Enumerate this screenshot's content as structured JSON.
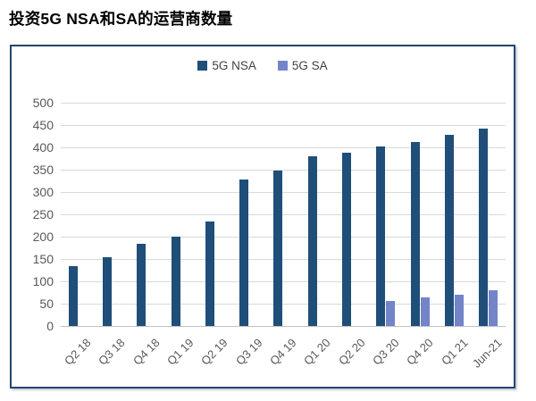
{
  "title": "投资5G NSA和SA的运营商数量",
  "chart_data": {
    "type": "bar",
    "title": "投资5G NSA和SA的运营商数量",
    "categories": [
      "Q2 18",
      "Q3 18",
      "Q4 18",
      "Q1 19",
      "Q2 19",
      "Q3 19",
      "Q4 19",
      "Q1 20",
      "Q2 20",
      "Q3 20",
      "Q4 20",
      "Q1 21",
      "Jun-21"
    ],
    "series": [
      {
        "name": "5G NSA",
        "color": "#1F4E79",
        "values": [
          135,
          154,
          184,
          201,
          235,
          328,
          349,
          381,
          388,
          402,
          412,
          428,
          443
        ]
      },
      {
        "name": "5G SA",
        "color": "#7384C9",
        "values": [
          null,
          null,
          null,
          null,
          null,
          null,
          null,
          null,
          null,
          56,
          65,
          70,
          81
        ]
      }
    ],
    "xlabel": "",
    "ylabel": "",
    "ylim": [
      0,
      500
    ],
    "ytick_step": 50,
    "grid": true,
    "legend_position": "top-center",
    "axis_label_color": "#595959",
    "gridline_color": "#D9D9D9",
    "frame_border_color": "#24466E"
  }
}
